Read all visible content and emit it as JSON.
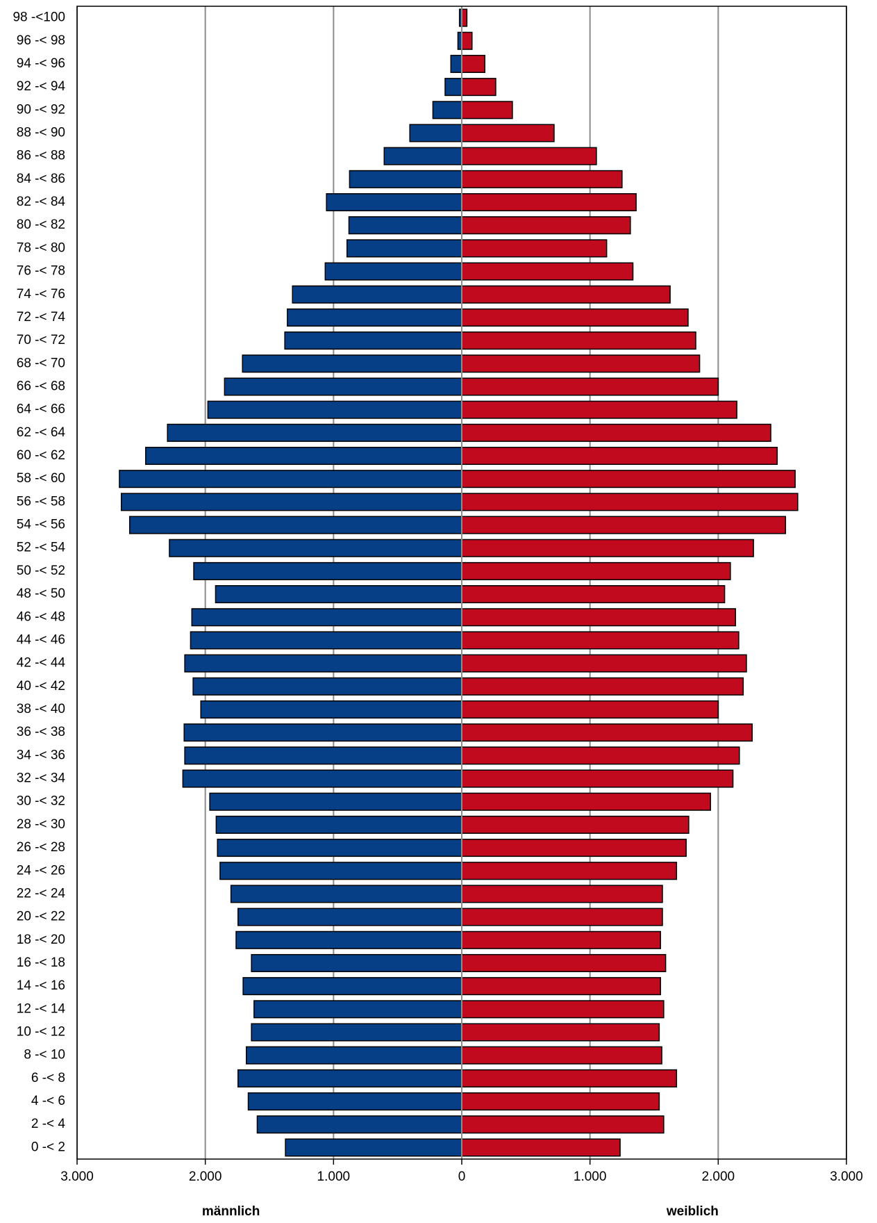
{
  "chart_data": {
    "type": "pyramid",
    "categories": [
      "98 -<100",
      "96 -< 98",
      "94 -< 96",
      "92 -< 94",
      "90 -< 92",
      "88 -< 90",
      "86 -< 88",
      "84 -< 86",
      "82 -< 84",
      "80 -< 82",
      "78 -< 80",
      "76 -< 78",
      "74 -< 76",
      "72 -< 74",
      "70 -< 72",
      "68 -< 70",
      "66 -< 68",
      "64 -< 66",
      "62 -< 64",
      "60 -< 62",
      "58 -< 60",
      "56 -< 58",
      "54 -< 56",
      "52 -< 54",
      "50 -< 52",
      "48 -< 50",
      "46 -< 48",
      "44 -< 46",
      "42 -< 44",
      "40 -< 42",
      "38 -< 40",
      "36 -< 38",
      "34 -< 36",
      "32 -< 34",
      "30 -< 32",
      "28 -< 30",
      "26 -< 28",
      "24 -< 26",
      "22 -< 24",
      "20 -< 22",
      "18 -< 20",
      "16 -< 18",
      "14 -< 16",
      "12 -< 14",
      "10 -< 12",
      "8 -< 10",
      "6 -<  8",
      "4 -<  6",
      "2 -<  4",
      "0 -<  2"
    ],
    "series": [
      {
        "name": "männlich",
        "side": "left",
        "color": "#063f86",
        "values": [
          18,
          30,
          85,
          130,
          225,
          405,
          605,
          875,
          1055,
          880,
          895,
          1065,
          1320,
          1360,
          1380,
          1710,
          1850,
          1980,
          2295,
          2465,
          2670,
          2655,
          2590,
          2280,
          2090,
          1920,
          2105,
          2115,
          2160,
          2095,
          2035,
          2165,
          2160,
          2175,
          1965,
          1915,
          1905,
          1885,
          1800,
          1745,
          1760,
          1640,
          1705,
          1620,
          1640,
          1680,
          1745,
          1665,
          1595,
          1375
        ]
      },
      {
        "name": "weiblich",
        "side": "right",
        "color": "#c20a1e",
        "values": [
          40,
          80,
          180,
          265,
          395,
          720,
          1050,
          1250,
          1360,
          1315,
          1130,
          1335,
          1625,
          1765,
          1825,
          1855,
          2000,
          2145,
          2410,
          2460,
          2600,
          2620,
          2525,
          2275,
          2095,
          2050,
          2135,
          2160,
          2220,
          2195,
          2000,
          2265,
          2165,
          2115,
          1940,
          1770,
          1750,
          1675,
          1565,
          1565,
          1550,
          1590,
          1550,
          1575,
          1540,
          1560,
          1675,
          1540,
          1575,
          1235
        ]
      }
    ],
    "xlim": [
      0,
      3000
    ],
    "left_xticks": [
      {
        "value": 3000,
        "label": "3.000"
      },
      {
        "value": 2000,
        "label": "2.000"
      },
      {
        "value": 1000,
        "label": "1.000"
      }
    ],
    "right_xticks": [
      0,
      {
        "value": 1000,
        "label": "1.000"
      },
      {
        "value": 2000,
        "label": "2.000"
      },
      {
        "value": 3000,
        "label": "3.000"
      }
    ],
    "grid": true
  }
}
